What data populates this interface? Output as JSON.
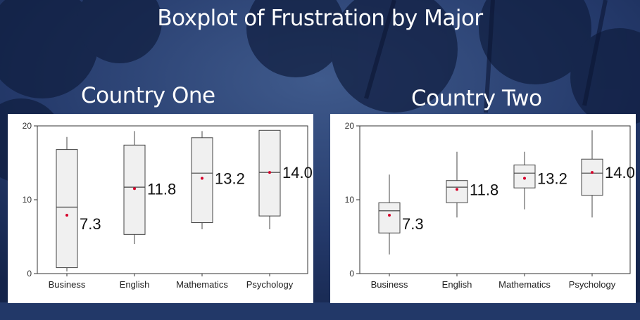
{
  "slide": {
    "title": "Boxplot of Frustration by Major"
  },
  "chart_data": [
    {
      "type": "boxplot",
      "title": "Country One",
      "categories": [
        "Business",
        "English",
        "Mathematics",
        "Psychology"
      ],
      "ylim": [
        0,
        20
      ],
      "yticks": [
        0,
        10,
        20
      ],
      "grid": false,
      "boxes": [
        {
          "category": "Business",
          "min": 0.3,
          "q1": 0.8,
          "median": 9.0,
          "q3": 16.8,
          "max": 18.5,
          "mean": 7.9
        },
        {
          "category": "English",
          "min": 4.0,
          "q1": 5.3,
          "median": 11.7,
          "q3": 17.4,
          "max": 19.3,
          "mean": 11.5
        },
        {
          "category": "Mathematics",
          "min": 6.0,
          "q1": 6.9,
          "median": 13.6,
          "q3": 18.4,
          "max": 19.3,
          "mean": 12.9
        },
        {
          "category": "Psychology",
          "min": 6.0,
          "q1": 7.8,
          "median": 13.7,
          "q3": 19.4,
          "max": 19.4,
          "mean": 13.7
        }
      ],
      "annotations": [
        "7.3",
        "11.8",
        "13.2",
        "14.0"
      ]
    },
    {
      "type": "boxplot",
      "title": "Country Two",
      "categories": [
        "Business",
        "English",
        "Mathematics",
        "Psychology"
      ],
      "ylim": [
        0,
        20
      ],
      "yticks": [
        0,
        10,
        20
      ],
      "grid": false,
      "boxes": [
        {
          "category": "Business",
          "min": 2.6,
          "q1": 5.5,
          "median": 8.5,
          "q3": 9.6,
          "max": 13.4,
          "mean": 7.9
        },
        {
          "category": "English",
          "min": 7.6,
          "q1": 9.6,
          "median": 11.7,
          "q3": 12.6,
          "max": 16.5,
          "mean": 11.4
        },
        {
          "category": "Mathematics",
          "min": 8.7,
          "q1": 11.6,
          "median": 13.6,
          "q3": 14.7,
          "max": 16.5,
          "mean": 12.9
        },
        {
          "category": "Psychology",
          "min": 7.6,
          "q1": 10.6,
          "median": 13.6,
          "q3": 15.5,
          "max": 19.4,
          "mean": 13.7
        }
      ],
      "annotations": [
        "7.3",
        "11.8",
        "13.2",
        "14.0"
      ]
    }
  ],
  "colors": {
    "box_fill": "#f0f0f0",
    "box_stroke": "#444444",
    "mean_dot": "#d6002a",
    "background": "#1c2f55"
  }
}
